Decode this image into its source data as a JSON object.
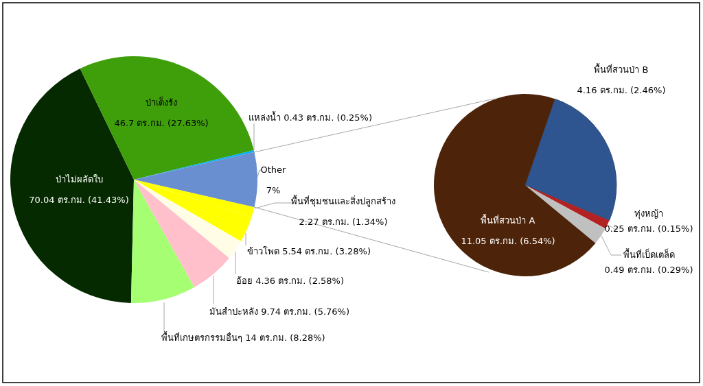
{
  "chart_data": [
    {
      "type": "pie",
      "categories": [
        "ป่าไม่ผลัดใบ",
        "ป่าเต็งรัง",
        "แหล่งน้ำ",
        "Other",
        "พื้นที่ชุมชนและสิ่งปลูกสร้าง",
        "ข้าวโพด",
        "อ้อย",
        "มันสำปะหลัง",
        "พื้นที่เกษตรกรรมอื่นๆ"
      ],
      "values": [
        41.43,
        27.63,
        0.25,
        7,
        1.34,
        3.28,
        2.58,
        5.76,
        8.28
      ],
      "colors": [
        "#062a00",
        "#3f9f0a",
        "#00b0f0",
        "#6a8fd0",
        "#ffff00",
        "#ffff00",
        "#fffde6",
        "#ffc0cb",
        "#a6ff73"
      ],
      "value_labels": [
        "70.04 ตร.กม. (41.43%)",
        "46.7 ตร.กม. (27.63%)",
        "0.43 ตร.กม. (0.25%)",
        "7%",
        "2.27 ตร.กม. (1.34%)",
        "5.54 ตร.กม. (3.28%)",
        "4.36 ตร.กม. (2.58%)",
        "9.74 ตร.กม. (5.76%)",
        "14 ตร.กม. (8.28%)"
      ]
    },
    {
      "type": "pie",
      "categories": [
        "พื้นที่สวนป่า B",
        "ทุ่งหญ้า",
        "พื้นที่เบ็ดเตล็ด",
        "พื้นที่สวนป่า A"
      ],
      "values": [
        2.46,
        0.15,
        0.29,
        6.54
      ],
      "colors": [
        "#2e5590",
        "#b22222",
        "#c0c0c0",
        "#4d230a"
      ],
      "value_labels": [
        "4.16 ตร.กม. (2.46%)",
        "0.25 ตร.กม. (0.15%)",
        "0.49 ตร.กม. (0.29%)",
        "11.05 ตร.กม. (6.54%)"
      ]
    }
  ]
}
